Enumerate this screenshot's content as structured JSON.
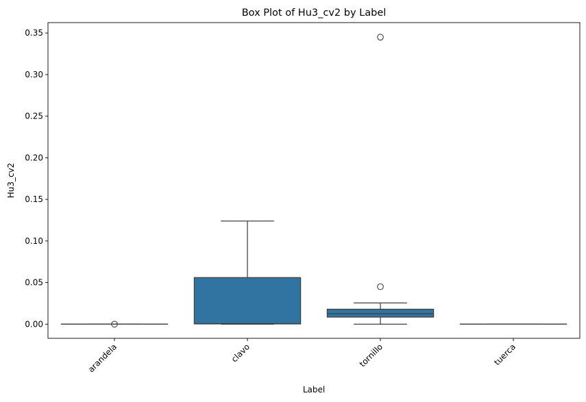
{
  "chart_data": {
    "type": "box",
    "title": "Box Plot of Hu3_cv2 by Label",
    "xlabel": "Label",
    "ylabel": "Hu3_cv2",
    "categories": [
      "arandela",
      "clavo",
      "tornillo",
      "tuerca"
    ],
    "ylim": [
      -0.017,
      0.3625
    ],
    "yticks": [
      0.0,
      0.05,
      0.1,
      0.15,
      0.2,
      0.25,
      0.3,
      0.35
    ],
    "ytick_labels": [
      "0.00",
      "0.05",
      "0.10",
      "0.15",
      "0.20",
      "0.25",
      "0.30",
      "0.35"
    ],
    "x_tick_rotation": 45,
    "grid": false,
    "box_color": "#3274a1",
    "line_color": "#3f3f3f",
    "boxes": [
      {
        "label": "arandela",
        "whisker_low": 0.0,
        "q1": 0.0,
        "median": 0.0,
        "q3": 0.0001,
        "whisker_high": 0.0001,
        "outliers": [
          0.0
        ]
      },
      {
        "label": "clavo",
        "whisker_low": 0.0,
        "q1": 0.0003,
        "median": 0.0006,
        "q3": 0.056,
        "whisker_high": 0.124,
        "outliers": []
      },
      {
        "label": "tornillo",
        "whisker_low": 0.0,
        "q1": 0.0085,
        "median": 0.0125,
        "q3": 0.018,
        "whisker_high": 0.0255,
        "outliers": [
          0.345,
          0.045
        ]
      },
      {
        "label": "tuerca",
        "whisker_low": 0.0,
        "q1": 0.0,
        "median": 0.0,
        "q3": 0.0001,
        "whisker_high": 0.0001,
        "outliers": []
      }
    ]
  }
}
